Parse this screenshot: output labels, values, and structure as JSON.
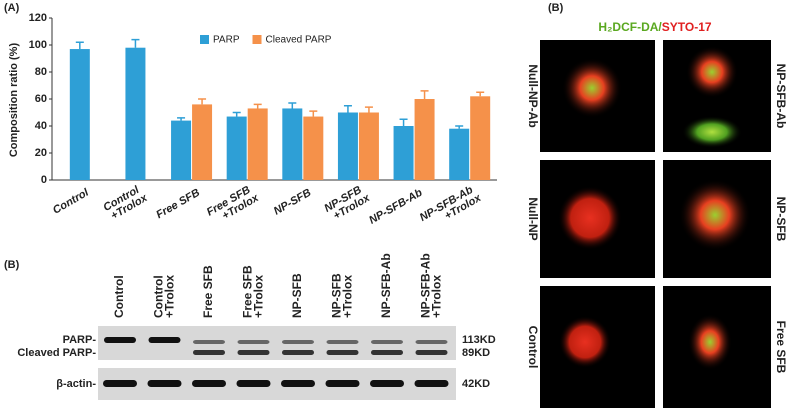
{
  "panel_labels": [
    "(A)",
    "(B)",
    "(B)"
  ],
  "chart_data": {
    "type": "bar",
    "ylabel": "Composition ratio (%)",
    "categories": [
      "Control",
      "Control +Trolox",
      "Free SFB",
      "Free SFB +Trolox",
      "NP-SFB",
      "NP-SFB +Trolox",
      "NP-SFB-Ab",
      "NP-SFB-Ab +Trolox"
    ],
    "series": [
      {
        "name": "PARP",
        "color": "#2e9fd6",
        "values": [
          97,
          98,
          44,
          47,
          53,
          50,
          40,
          38
        ],
        "errors": [
          5,
          6,
          2,
          3,
          4,
          5,
          5,
          2
        ]
      },
      {
        "name": "Cleaved PARP",
        "color": "#f5914a",
        "values": [
          null,
          null,
          56,
          53,
          47,
          50,
          60,
          62
        ],
        "errors": [
          null,
          null,
          4,
          3,
          4,
          4,
          6,
          3
        ]
      }
    ],
    "ylim": [
      0,
      120
    ],
    "yticks": [
      0,
      20,
      40,
      60,
      80,
      100,
      120
    ],
    "legend": "top"
  },
  "blot": {
    "lanes": [
      "Control",
      "Control +Trolox",
      "Free SFB",
      "Free SFB +Trolox",
      "NP-SFB",
      "NP-SFB +Trolox",
      "NP-SFB-Ab",
      "NP-SFB-Ab +Trolox"
    ],
    "rows": [
      "PARP-",
      "Cleaved PARP-",
      "β-actin-"
    ],
    "sizes": [
      "113KD",
      "89KD",
      "42KD"
    ]
  },
  "images": {
    "title": [
      "H₂DCF-DA/",
      "SYTO-17"
    ],
    "labels": [
      "Null-NP-Ab",
      "NP-SFB-Ab",
      "Null-NP",
      "NP-SFB",
      "Control",
      "Free SFB"
    ]
  }
}
